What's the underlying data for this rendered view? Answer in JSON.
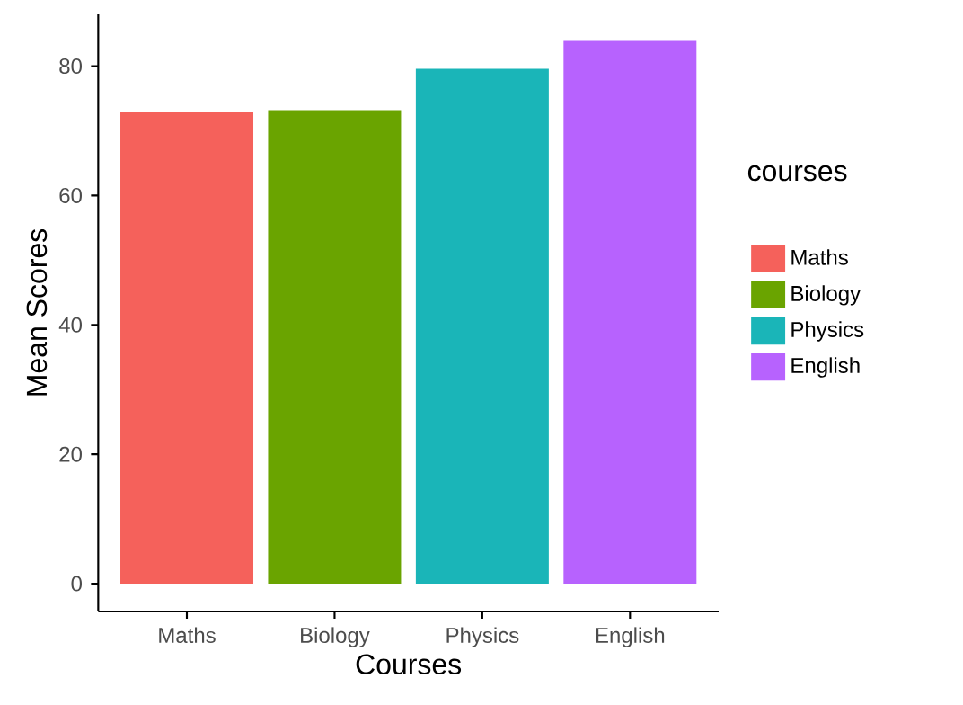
{
  "chart_data": {
    "type": "bar",
    "xlabel": "Courses",
    "ylabel": "Mean Scores",
    "legend_title": "courses",
    "categories": [
      "Maths",
      "Biology",
      "Physics",
      "English"
    ],
    "series": [
      {
        "name": "Maths",
        "color": "#f5615b",
        "values": [
          73,
          null,
          null,
          null
        ]
      },
      {
        "name": "Biology",
        "color": "#6aa400",
        "values": [
          null,
          73.2,
          null,
          null
        ]
      },
      {
        "name": "Physics",
        "color": "#1ab5b8",
        "values": [
          null,
          null,
          79.6,
          null
        ]
      },
      {
        "name": "English",
        "color": "#b762fe",
        "values": [
          null,
          null,
          null,
          83.9
        ]
      }
    ],
    "ylim": [
      -4.3,
      88
    ],
    "yticks": [
      0,
      20,
      40,
      60,
      80
    ],
    "legend": "right"
  }
}
